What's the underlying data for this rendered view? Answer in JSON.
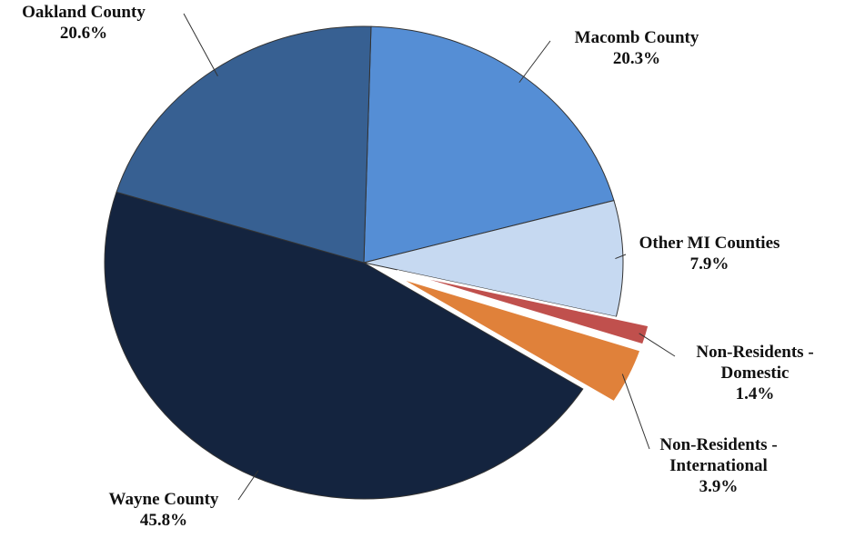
{
  "chart_data": {
    "type": "pie",
    "categories": [
      "Macomb County",
      "Other MI Counties",
      "Non-Residents - Domestic",
      "Non-Residents - International",
      "Wayne County",
      "Oakland County"
    ],
    "values": [
      20.3,
      7.9,
      1.4,
      3.9,
      45.8,
      20.6
    ],
    "value_labels": [
      "20.3%",
      "7.9%",
      "1.4%",
      "3.9%",
      "45.8%",
      "20.6%"
    ],
    "colors": [
      "#558ed5",
      "#c6d9f1",
      "#c0504d",
      "#e0813a",
      "#14243f",
      "#376092"
    ],
    "exploded": [
      false,
      false,
      true,
      true,
      false,
      false
    ]
  }
}
